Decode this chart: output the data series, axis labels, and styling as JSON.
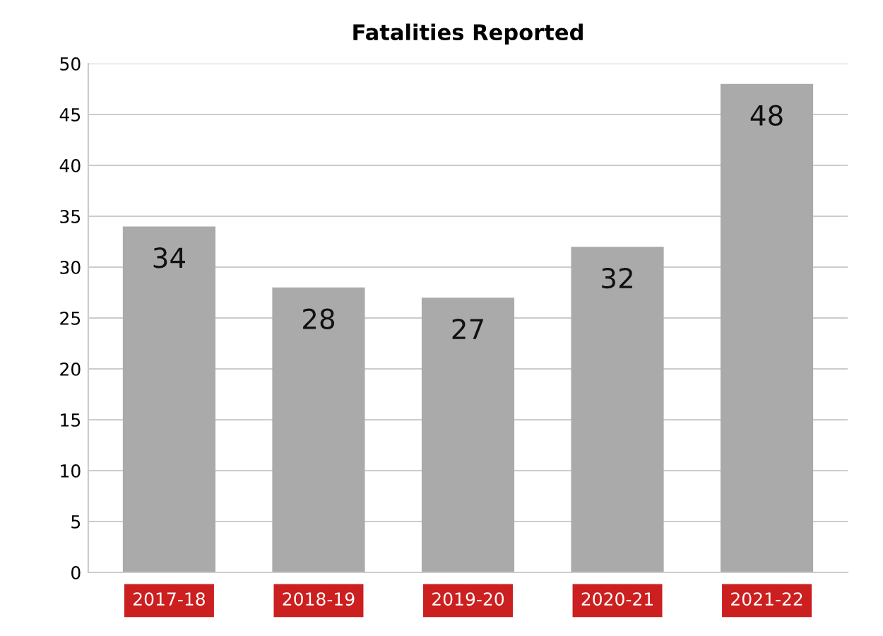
{
  "chart_data": {
    "type": "bar",
    "title": "Fatalities Reported",
    "categories": [
      "2017-18",
      "2018-19",
      "2019-20",
      "2020-21",
      "2021-22"
    ],
    "values": [
      34,
      28,
      27,
      32,
      48
    ],
    "color": "#a9aaa9",
    "ylim": [
      0,
      50
    ],
    "yticks": [
      0,
      5,
      10,
      15,
      20,
      25,
      30,
      35,
      40,
      45,
      50
    ],
    "grid": "y",
    "data_labels": true,
    "legend": false
  }
}
